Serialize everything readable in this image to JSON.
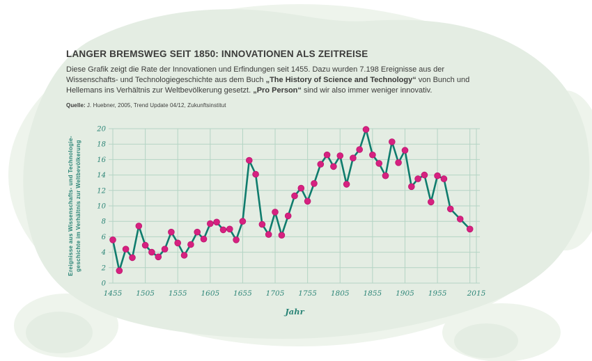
{
  "header": {
    "title": "LANGER BREMSWEG SEIT 1850: INNOVATIONEN ALS ZEITREISE",
    "body_parts": [
      {
        "t": "Diese Grafik zeigt die Rate der Innovationen und Erfindungen seit 1455. Dazu wurden 7.198 Ereignisse aus der Wissenschafts- und Technologiegeschichte aus dem Buch ",
        "b": false
      },
      {
        "t": "„The History of Science and Technology“",
        "b": true
      },
      {
        "t": " von Bunch und Hellemans ins Verhältnis zur Weltbevölkerung gesetzt. ",
        "b": false
      },
      {
        "t": "„Pro Person“",
        "b": true
      },
      {
        "t": " sind wir also immer weniger innovativ.",
        "b": false
      }
    ],
    "source_label": "Quelle:",
    "source_text": "J. Huebner, 2005, Trend Update 04/12, Zukunftsinstitut"
  },
  "chart_data": {
    "type": "line",
    "title": "",
    "xlabel": "Jahr",
    "ylabel_lines": [
      "Ereignisse aus Wissenschafts- und Technologie-",
      "geschichte im Verhältnis zur Weltbevölkerung"
    ],
    "xlim": [
      1455,
      2015
    ],
    "ylim": [
      0,
      20
    ],
    "y_tick_step": 2,
    "y_ticks": [
      0,
      2,
      4,
      6,
      8,
      10,
      12,
      14,
      16,
      18,
      20
    ],
    "x_gridlines": [
      1455,
      1505,
      1555,
      1605,
      1655,
      1705,
      1755,
      1805,
      1855,
      1905,
      1955,
      2005,
      2015
    ],
    "x_tick_labels": [
      1455,
      1505,
      1555,
      1605,
      1655,
      1705,
      1755,
      1805,
      1855,
      1905,
      1955,
      2015
    ],
    "grid": true,
    "legend": "none",
    "x": [
      1455,
      1465,
      1475,
      1485,
      1495,
      1505,
      1515,
      1525,
      1535,
      1545,
      1555,
      1565,
      1575,
      1585,
      1595,
      1605,
      1615,
      1625,
      1635,
      1645,
      1655,
      1665,
      1675,
      1685,
      1695,
      1705,
      1715,
      1725,
      1735,
      1745,
      1755,
      1765,
      1775,
      1785,
      1795,
      1805,
      1815,
      1825,
      1835,
      1845,
      1855,
      1865,
      1875,
      1885,
      1895,
      1905,
      1915,
      1925,
      1935,
      1945,
      1955,
      1965,
      1975,
      1990,
      2005
    ],
    "values": [
      5.6,
      1.6,
      4.4,
      3.3,
      7.4,
      4.9,
      4.0,
      3.4,
      4.4,
      6.6,
      5.2,
      3.6,
      5.0,
      6.6,
      5.7,
      7.7,
      7.9,
      6.9,
      7.0,
      5.6,
      8.0,
      15.9,
      14.1,
      7.6,
      6.3,
      9.2,
      6.2,
      8.7,
      11.3,
      12.3,
      10.6,
      12.9,
      15.4,
      16.6,
      15.1,
      16.5,
      12.8,
      16.2,
      17.3,
      19.9,
      16.6,
      15.5,
      13.9,
      18.3,
      15.6,
      17.2,
      12.5,
      13.5,
      14.0,
      10.5,
      13.9,
      13.5,
      9.6,
      8.3,
      7.0
    ],
    "colors": {
      "line": "#0f7c6d",
      "point": "#d62180",
      "grid": "#b4d4c4",
      "axis_text": "#2c8577",
      "text": "#3b3b3a",
      "blob": "#e4ede3",
      "blob_halo": "#eef4ec"
    }
  }
}
